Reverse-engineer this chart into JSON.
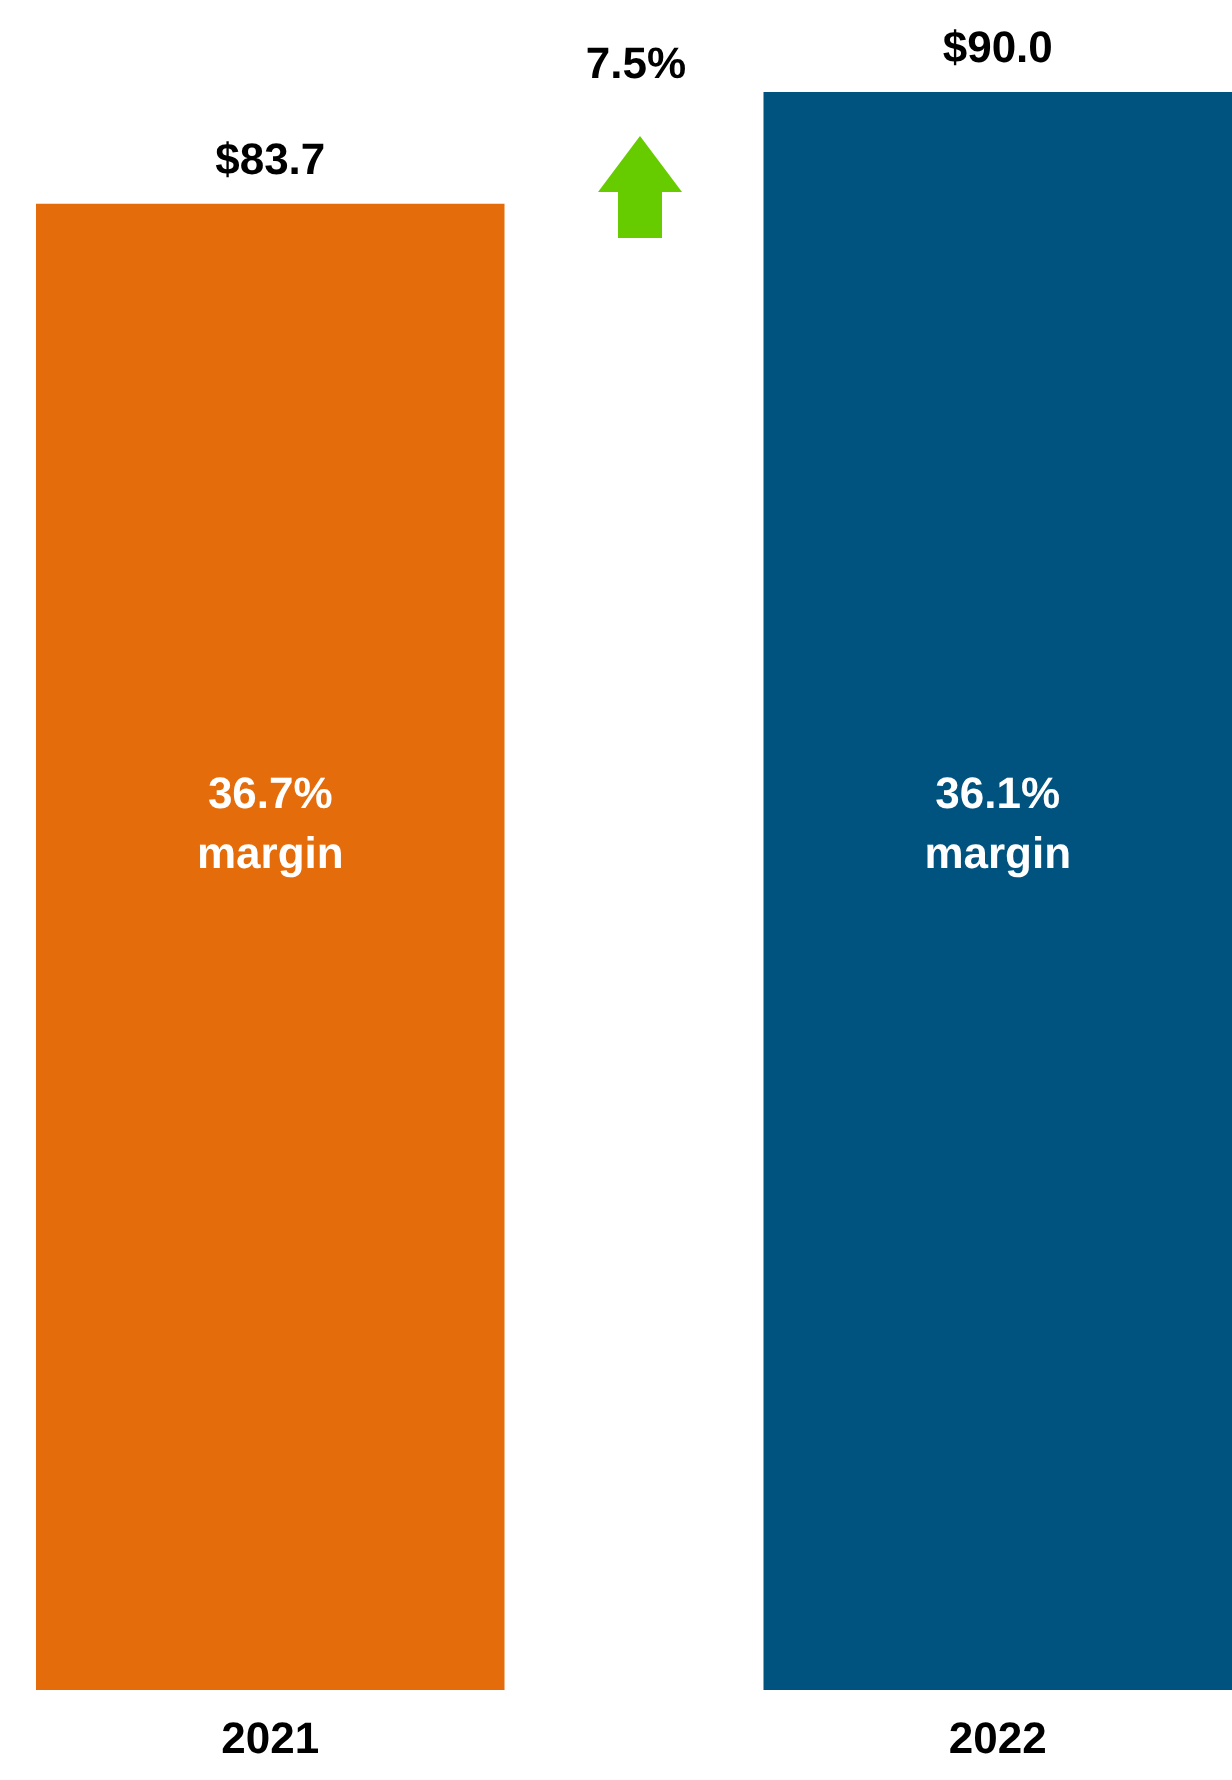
{
  "chart_data": {
    "type": "bar",
    "categories": [
      "2021",
      "2022"
    ],
    "values": [
      83.7,
      90.0
    ],
    "colors": [
      "#e46c0a",
      "#00527f"
    ],
    "value_labels": [
      "$83.7",
      "$90.0"
    ],
    "annotations": [
      "36.7% margin",
      "36.1% margin",
      "7.5%"
    ]
  }
}
